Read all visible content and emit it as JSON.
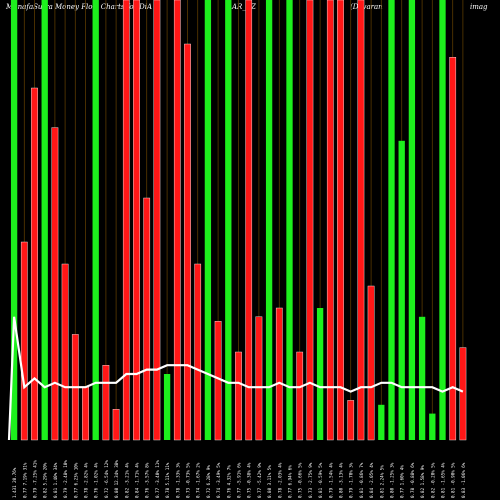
{
  "header": {
    "part1": "MunafaSutra  Money Flow  Charts for DiA",
    "part2": "AR_BZ",
    "part3": "(Davaran",
    "part4": "imag"
  },
  "chart_data": {
    "type": "bar",
    "title": "MunafaSutra Money Flow Charts for DiA AR_BZ (Davaran",
    "categories": [
      "1.431 20.76%",
      "0.77 7.19% 31%",
      "0.79 -7.25% 41%",
      "0.82 5.29% 20%",
      "0.81 1.40% 34%",
      "0.79 -2.48% 10%",
      "0.77 6.23% 10%",
      "0.78 -2.82% 4%",
      "0.76 -1.02% 4%",
      "0.72 -6.54% 12%",
      "0.80 12.34% 38%",
      "0.82 -3.21% 4%",
      "0.84 -1.71% 4%",
      "0.76 -3.57% 8%",
      "0.77 -3.40% 11%",
      "0.78 5.11% 11%",
      "0.78 -1.33% 3%",
      "0.73 -0.73% 5%",
      "0.74 -1.67% 2%",
      "0.72 6.28% 9%",
      "0.74 -3.49% 5%",
      "0.76 4.32% 7%",
      "0.77 -5.91% 6%",
      "0.75 -0.38% 4%",
      "0.77 -5.42% 9%",
      "0.80 3.11% 5%",
      "0.78 -2.03% 4%",
      "0.77 6.94% 6%",
      "0.75 -0.66% 5%",
      "0.73 -2.75% 9%",
      "0.81 -0.59% 5%",
      "0.79 -1.54% 4%",
      "0.80 -3.13% 4%",
      "0.79 -1.70% 3%",
      "0.81 -0.86% 7%",
      "0.84 -2.05% 4%",
      "0.81 2.24% 5%",
      "0.80 -1.25% 3%",
      "0.77 1.60% 4%",
      "0.78 -0.88% 6%",
      "0.82 1.58% 9%",
      "0.82 -0.20% 5%",
      "0.81 -1.65% 4%",
      "0.81 -0.90% 5%",
      "0.83 -1.06% 6%"
    ],
    "values": [
      100,
      45,
      80,
      100,
      71,
      40,
      24,
      12,
      100,
      17,
      7,
      100,
      100,
      55,
      100,
      15,
      100,
      90,
      40,
      100,
      27,
      100,
      20,
      100,
      28,
      100,
      30,
      100,
      20,
      100,
      30,
      100,
      100,
      9,
      100,
      35,
      8,
      100,
      68,
      100,
      28,
      6,
      100,
      87,
      21
    ],
    "direction": [
      "up",
      "dn",
      "dn",
      "up",
      "dn",
      "dn",
      "dn",
      "dn",
      "up",
      "dn",
      "dn",
      "dn",
      "dn",
      "dn",
      "dn",
      "up",
      "dn",
      "dn",
      "dn",
      "up",
      "dn",
      "up",
      "dn",
      "dn",
      "dn",
      "up",
      "dn",
      "up",
      "dn",
      "dn",
      "up",
      "dn",
      "dn",
      "dn",
      "dn",
      "dn",
      "up",
      "up",
      "up",
      "up",
      "up",
      "up",
      "up",
      "dn",
      "dn"
    ],
    "price_line": [
      28,
      12,
      14,
      12,
      13,
      12,
      12,
      12,
      13,
      13,
      13,
      15,
      15,
      16,
      16,
      17,
      17,
      17,
      16,
      15,
      14,
      13,
      13,
      12,
      12,
      12,
      13,
      12,
      12,
      13,
      12,
      12,
      12,
      11,
      12,
      12,
      13,
      13,
      12,
      12,
      12,
      12,
      11,
      12,
      11
    ],
    "ylim": [
      0,
      100
    ],
    "colors": {
      "up": "#1df01d",
      "down": "#ff1717",
      "line": "#ffffff",
      "divider": "#5a3a00",
      "background": "#000000"
    },
    "grid": false,
    "legend": "none"
  }
}
